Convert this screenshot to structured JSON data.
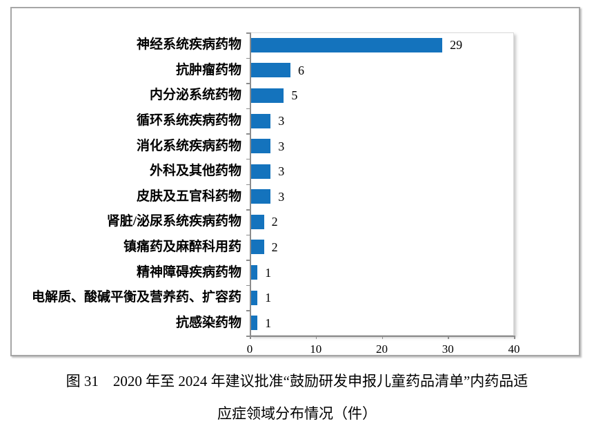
{
  "chart_data": {
    "type": "bar",
    "orientation": "horizontal",
    "categories": [
      "神经系统疾病药物",
      "抗肿瘤药物",
      "内分泌系统药物",
      "循环系统疾病药物",
      "消化系统疾病药物",
      "外科及其他药物",
      "皮肤及五官科药物",
      "肾脏/泌尿系统疾病药物",
      "镇痛药及麻醉科用药",
      "精神障碍疾病药物",
      "电解质、酸碱平衡及营养药、扩容药",
      "抗感染药物"
    ],
    "values": [
      29,
      6,
      5,
      3,
      3,
      3,
      3,
      2,
      2,
      1,
      1,
      1
    ],
    "data_labels": [
      "29",
      "6",
      "5",
      "3",
      "3",
      "3",
      "3",
      "2",
      "2",
      "1",
      "1",
      "1"
    ],
    "xlim": [
      0,
      40
    ],
    "xticks": [
      0,
      10,
      20,
      30,
      40
    ],
    "xtick_labels": [
      "0",
      "10",
      "20",
      "30",
      "40"
    ],
    "grid": false,
    "legend": "none",
    "bar_color": "#1473bd",
    "axis_color": "#8c8c8c"
  },
  "caption": {
    "line1": "图 31　2020 年至 2024 年建议批准“鼓励研发申报儿童药品清单”内药品适",
    "line2": "应症领域分布情况（件）"
  }
}
